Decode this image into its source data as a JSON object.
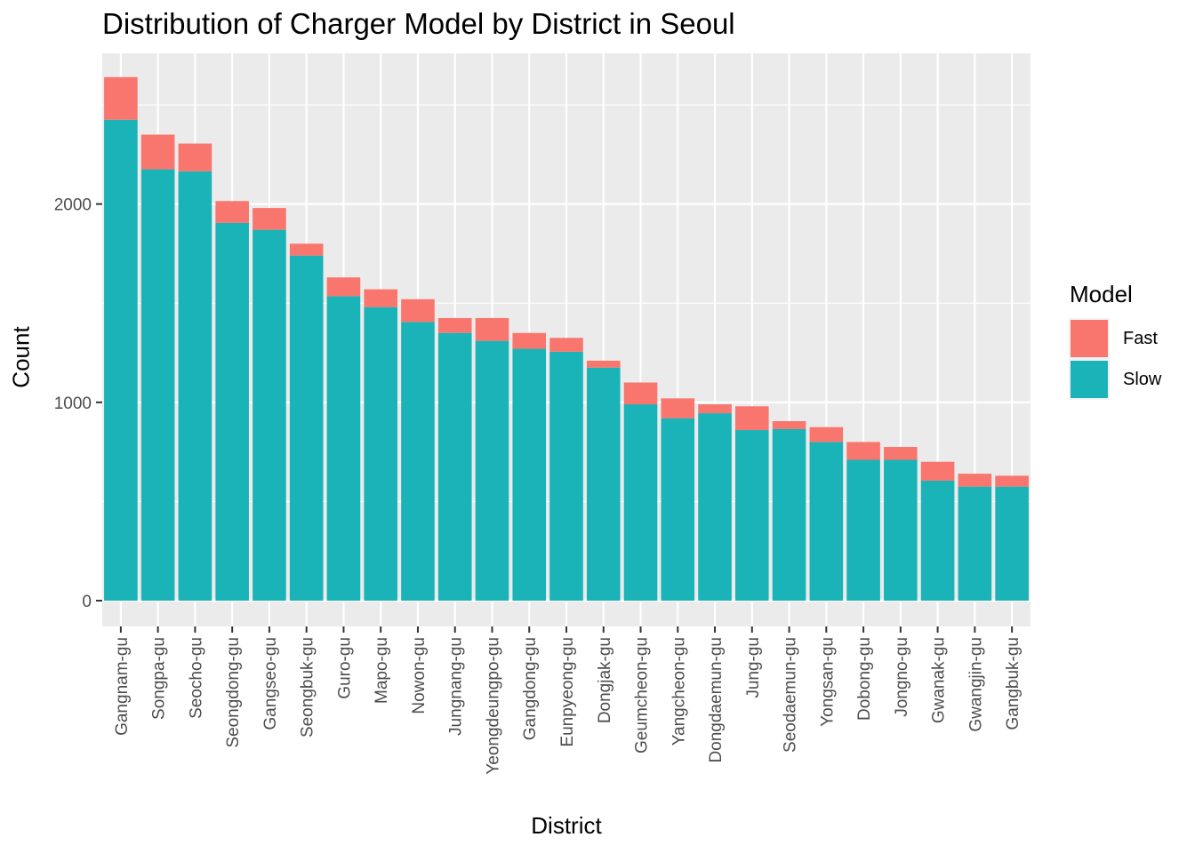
{
  "chart_data": {
    "type": "bar",
    "stacked": true,
    "title": "Distribution of Charger Model by District in Seoul",
    "xlabel": "District",
    "ylabel": "Count",
    "ylim": [
      -130,
      2760
    ],
    "yticks": [
      0,
      1000,
      2000
    ],
    "grid": true,
    "legend": {
      "title": "Model",
      "placement": "right"
    },
    "categories": [
      "Gangnam-gu",
      "Songpa-gu",
      "Seocho-gu",
      "Seongdong-gu",
      "Gangseo-gu",
      "Seongbuk-gu",
      "Guro-gu",
      "Mapo-gu",
      "Nowon-gu",
      "Jungnang-gu",
      "Yeongdeungpo-gu",
      "Gangdong-gu",
      "Eunpyeong-gu",
      "Dongjak-gu",
      "Geumcheon-gu",
      "Yangcheon-gu",
      "Dongdaemun-gu",
      "Jung-gu",
      "Seodaemun-gu",
      "Yongsan-gu",
      "Dobong-gu",
      "Jongno-gu",
      "Gwanak-gu",
      "Gwangjin-gu",
      "Gangbuk-gu"
    ],
    "series": [
      {
        "name": "Slow",
        "color": "#19B3B8",
        "values": [
          2425,
          2175,
          2165,
          1905,
          1870,
          1740,
          1535,
          1480,
          1405,
          1350,
          1310,
          1270,
          1255,
          1175,
          990,
          920,
          945,
          860,
          865,
          800,
          710,
          710,
          605,
          575,
          575
        ]
      },
      {
        "name": "Fast",
        "color": "#F8766D",
        "values": [
          215,
          175,
          140,
          110,
          110,
          60,
          95,
          90,
          115,
          75,
          115,
          80,
          70,
          35,
          110,
          100,
          45,
          120,
          40,
          75,
          90,
          65,
          95,
          65,
          55
        ]
      }
    ]
  }
}
